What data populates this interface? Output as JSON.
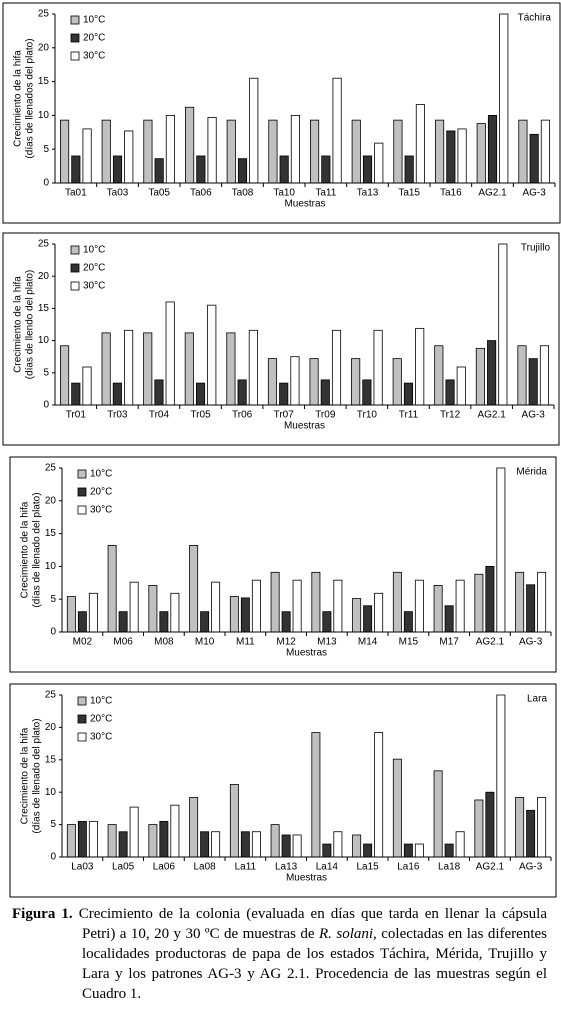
{
  "chart_data": [
    {
      "type": "bar",
      "title": "Táchira",
      "xlabel": "Muestras",
      "ylabel": [
        "Crecimiento de la hifa",
        "(días de llenados del plato)"
      ],
      "categories": [
        "Ta01",
        "Ta03",
        "Ta05",
        "Ta06",
        "Ta08",
        "Ta10",
        "Ta11",
        "Ta13",
        "Ta15",
        "Ta16",
        "AG2.1",
        "AG-3"
      ],
      "series": [
        {
          "name": "10°C",
          "color": "#c0c0c0",
          "values": [
            9.3,
            9.3,
            9.3,
            11.2,
            9.3,
            9.3,
            9.3,
            9.3,
            9.3,
            9.3,
            8.8,
            9.3
          ]
        },
        {
          "name": "20°C",
          "color": "#333333",
          "values": [
            4,
            4,
            3.6,
            4,
            3.6,
            4,
            4,
            4,
            4,
            7.7,
            10,
            7.2
          ]
        },
        {
          "name": "30°C",
          "color": "#ffffff",
          "values": [
            8,
            7.7,
            10,
            9.7,
            15.5,
            10,
            15.5,
            5.9,
            11.6,
            8,
            25,
            9.3
          ]
        }
      ],
      "ylim": [
        0,
        25
      ],
      "yticks": [
        0,
        5,
        10,
        15,
        20,
        25
      ],
      "grid": false,
      "legend": "top-left"
    },
    {
      "type": "bar",
      "title": "Trujillo",
      "xlabel": "Muestras",
      "ylabel": [
        "Crecimiento de la hifa",
        "(días de llendo del plato)"
      ],
      "categories": [
        "Tr01",
        "Tr03",
        "Tr04",
        "Tr05",
        "Tr06",
        "Tr07",
        "Tr09",
        "Tr10",
        "Tr11",
        "Tr12",
        "AG2.1",
        "AG-3"
      ],
      "series": [
        {
          "name": "10°C",
          "color": "#c0c0c0",
          "values": [
            9.2,
            11.2,
            11.2,
            11.2,
            11.2,
            7.2,
            7.2,
            7.2,
            7.2,
            9.2,
            8.8,
            9.2
          ]
        },
        {
          "name": "20°C",
          "color": "#333333",
          "values": [
            3.4,
            3.4,
            3.9,
            3.4,
            3.9,
            3.4,
            3.9,
            3.9,
            3.4,
            3.9,
            10,
            7.2
          ]
        },
        {
          "name": "30°C",
          "color": "#ffffff",
          "values": [
            5.9,
            11.6,
            16,
            15.5,
            11.6,
            7.5,
            11.6,
            11.6,
            11.9,
            5.9,
            25,
            9.2
          ]
        }
      ],
      "ylim": [
        0,
        25
      ],
      "yticks": [
        0,
        5,
        10,
        15,
        20,
        25
      ],
      "grid": false,
      "legend": "top-left"
    },
    {
      "type": "bar",
      "title": "Mérida",
      "xlabel": "Muestras",
      "ylabel": [
        "Crecimiento de la hifa",
        "(días de llenado del plato)"
      ],
      "categories": [
        "M02",
        "M06",
        "M08",
        "M10",
        "M11",
        "M12",
        "M13",
        "M14",
        "M15",
        "M17",
        "AG2.1",
        "AG-3"
      ],
      "series": [
        {
          "name": "10°C",
          "color": "#c0c0c0",
          "values": [
            5.4,
            13.2,
            7.1,
            13.2,
            5.4,
            9.1,
            9.1,
            5.1,
            9.1,
            7.1,
            8.8,
            9.1
          ]
        },
        {
          "name": "20°C",
          "color": "#333333",
          "values": [
            3.1,
            3.1,
            3.1,
            3.1,
            5.2,
            3.1,
            3.1,
            4,
            3.1,
            4,
            10,
            7.2
          ]
        },
        {
          "name": "30°C",
          "color": "#ffffff",
          "values": [
            5.9,
            7.6,
            5.9,
            7.6,
            7.9,
            7.9,
            7.9,
            5.9,
            7.9,
            7.9,
            25,
            9.1
          ]
        }
      ],
      "ylim": [
        0,
        25
      ],
      "yticks": [
        0,
        5,
        10,
        15,
        20,
        25
      ],
      "grid": false,
      "legend": "top-left"
    },
    {
      "type": "bar",
      "title": "Lara",
      "xlabel": "Muestras",
      "ylabel": [
        "Crecimiento de la hifa",
        "(días de llenado del plato)"
      ],
      "categories": [
        "La03",
        "La05",
        "La06",
        "La08",
        "La11",
        "La13",
        "La14",
        "La15",
        "La16",
        "La18",
        "AG2.1",
        "AG-3"
      ],
      "series": [
        {
          "name": "10°C",
          "color": "#c0c0c0",
          "values": [
            5,
            5,
            5,
            9.2,
            11.2,
            5,
            19.2,
            3.4,
            15.1,
            13.3,
            8.8,
            9.2
          ]
        },
        {
          "name": "20°C",
          "color": "#333333",
          "values": [
            5.5,
            3.9,
            5.5,
            3.9,
            3.9,
            3.4,
            2,
            2,
            2,
            2,
            10,
            7.2
          ]
        },
        {
          "name": "30°C",
          "color": "#ffffff",
          "values": [
            5.5,
            7.7,
            8,
            3.9,
            3.9,
            3.4,
            3.9,
            19.2,
            2,
            3.9,
            25,
            9.2
          ]
        }
      ],
      "ylim": [
        0,
        25
      ],
      "yticks": [
        0,
        5,
        10,
        15,
        20,
        25
      ],
      "grid": false,
      "legend": "top-left"
    }
  ],
  "caption": {
    "label": "Figura 1.",
    "text_1": "Crecimiento de la colonia (evaluada en días que tarda en llenar la cápsula Petri) a 10, 20 y 30 ºC de  muestras de",
    "species": "R. solani",
    "text_2": ", colectadas en las diferentes localidades productoras de papa de los estados Táchira, Mérida, Trujillo y Lara y los patrones AG-3 y AG 2.1. Procedencia de las muestras según el Cuadro 1."
  }
}
